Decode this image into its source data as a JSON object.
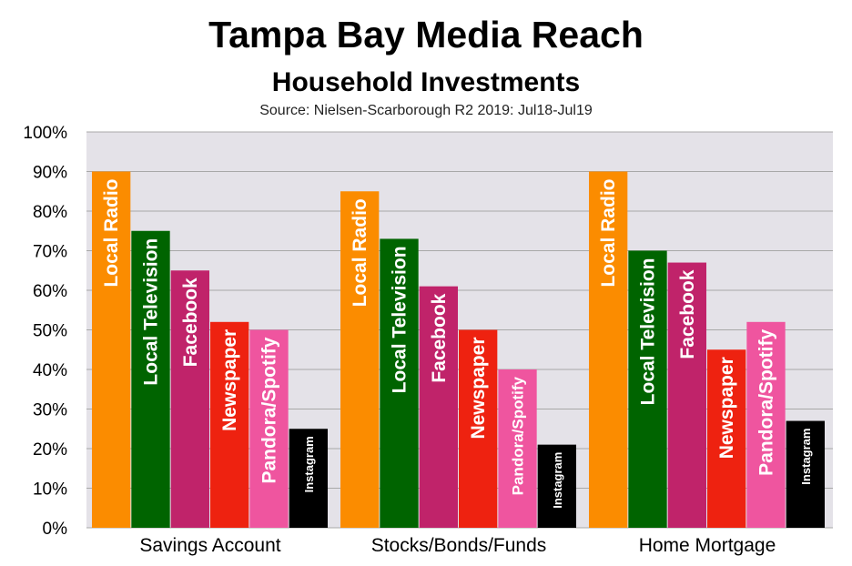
{
  "header": {
    "title": "Tampa Bay Media Reach",
    "subtitle": "Household Investments",
    "source": "Source: Nielsen-Scarborough R2 2019: Jul18-Jul19"
  },
  "colors": {
    "plot_background": "#e4e2e8",
    "grid": "#a8a8a8"
  },
  "chart_data": {
    "type": "bar",
    "title": "Tampa Bay Media Reach",
    "subtitle": "Household Investments",
    "categories": [
      "Savings Account",
      "Stocks/Bonds/Funds",
      "Home Mortgage"
    ],
    "ylim": [
      0,
      100
    ],
    "yticks": [
      "0%",
      "10%",
      "20%",
      "30%",
      "40%",
      "50%",
      "60%",
      "70%",
      "80%",
      "90%",
      "100%"
    ],
    "unit": "%",
    "grid": true,
    "legend": "labels inside bars",
    "series": [
      {
        "name": "Local Radio",
        "color": "#fb8c00",
        "values": [
          90,
          85,
          90
        ]
      },
      {
        "name": "Local Television",
        "color": "#006400",
        "values": [
          75,
          73,
          70
        ]
      },
      {
        "name": "Facebook",
        "color": "#c0236a",
        "values": [
          65,
          61,
          67
        ]
      },
      {
        "name": "Newspaper",
        "color": "#ee2210",
        "values": [
          52,
          50,
          45
        ]
      },
      {
        "name": "Pandora/Spotify",
        "color": "#ef559f",
        "values": [
          50,
          40,
          52
        ]
      },
      {
        "name": "Instagram",
        "color": "#000000",
        "values": [
          25,
          21,
          27
        ]
      }
    ]
  }
}
